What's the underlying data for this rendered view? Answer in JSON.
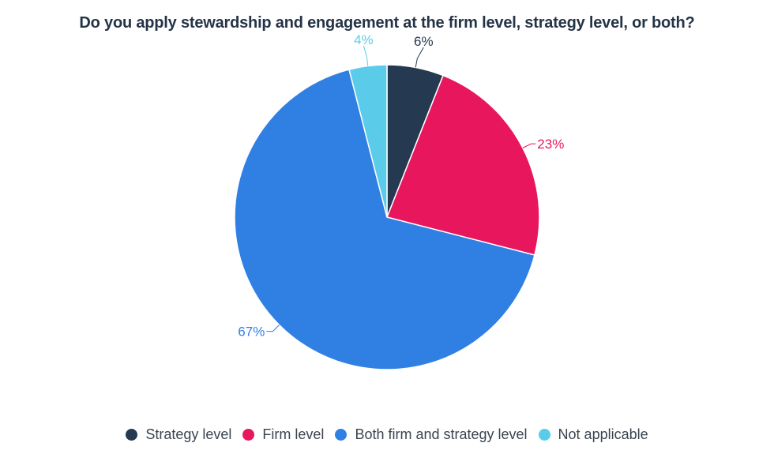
{
  "chart_data": {
    "type": "pie",
    "title": "Do you apply stewardship and engagement at the firm level, strategy level, or both?",
    "slices": [
      {
        "label": "Strategy level",
        "value": 6,
        "display": "6%",
        "color": "#253a50"
      },
      {
        "label": "Firm level",
        "value": 23,
        "display": "23%",
        "color": "#e8175d"
      },
      {
        "label": "Both firm and strategy level",
        "value": 67,
        "display": "67%",
        "color": "#3080e4"
      },
      {
        "label": "Not applicable",
        "value": 4,
        "display": "4%",
        "color": "#5bcbea"
      }
    ],
    "legend_position": "bottom",
    "label_colors": [
      "#253a50",
      "#e8175d",
      "#3080e4",
      "#5bcbea"
    ]
  }
}
